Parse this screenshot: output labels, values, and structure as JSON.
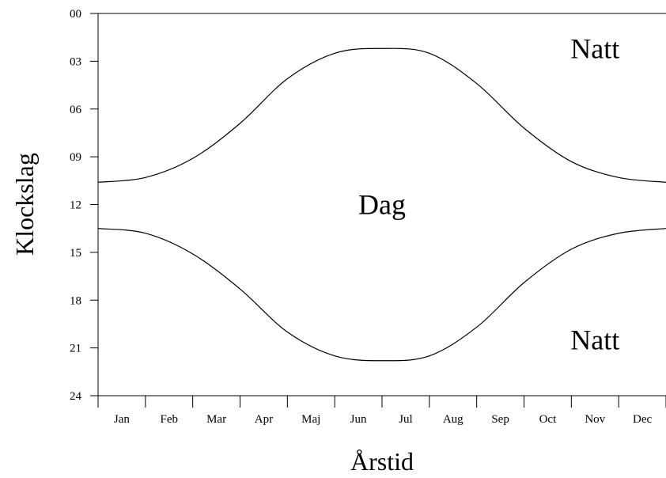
{
  "chart_data": {
    "type": "line",
    "title": "",
    "xlabel": "Årstid",
    "ylabel": "Klockslag",
    "categories": [
      "Jan",
      "Feb",
      "Mar",
      "Apr",
      "Maj",
      "Jun",
      "Jul",
      "Aug",
      "Sep",
      "Oct",
      "Nov",
      "Dec"
    ],
    "y_ticks": [
      "00",
      "03",
      "06",
      "09",
      "12",
      "15",
      "18",
      "21",
      "24"
    ],
    "ylim": [
      0,
      24
    ],
    "y_inverted": true,
    "xlim": [
      0,
      12
    ],
    "grid": false,
    "series": [
      {
        "x": [
          0,
          1,
          2,
          3,
          4,
          5,
          6,
          7,
          8,
          9,
          10,
          11,
          12
        ],
        "values": [
          10.6,
          10.3,
          9.1,
          6.9,
          4.1,
          2.5,
          2.2,
          2.5,
          4.4,
          7.2,
          9.3,
          10.3,
          10.6
        ]
      },
      {
        "x": [
          0,
          1,
          2,
          3,
          4,
          5,
          6,
          7,
          8,
          9,
          10,
          11,
          12
        ],
        "values": [
          13.5,
          13.8,
          15.1,
          17.3,
          20.0,
          21.5,
          21.8,
          21.5,
          19.7,
          16.9,
          14.8,
          13.8,
          13.5
        ]
      }
    ],
    "annotations": [
      {
        "text": "Natt",
        "x": 10.5,
        "y": 2.2
      },
      {
        "text": "Dag",
        "x": 6.0,
        "y": 12.0
      },
      {
        "text": "Natt",
        "x": 10.5,
        "y": 20.5
      }
    ]
  }
}
